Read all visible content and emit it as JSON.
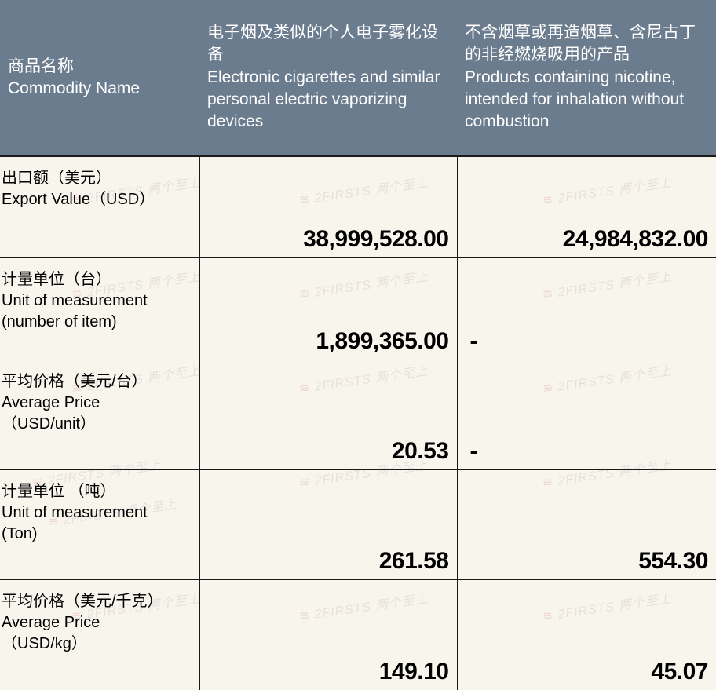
{
  "header": {
    "col1": "商品名称\nCommodity Name",
    "col2": "电子烟及类似的个人电子雾化设备\nElectronic cigarettes and similar personal electric vaporizing devices",
    "col3": "不含烟草或再造烟草、含尼古丁的非经燃烧吸用的产品\nProducts containing nicotine, intended for inhalation without combustion"
  },
  "rows": [
    {
      "label": "出口额（美元）\n Export Value（USD）",
      "v1": "38,999,528.00",
      "v2": "24,984,832.00",
      "v2_align": "right"
    },
    {
      "label": "计量单位（台）\nUnit of measurement\n(number of item)",
      "v1": "1,899,365.00",
      "v2": "-",
      "v2_align": "left"
    },
    {
      "label": "平均价格（美元/台）\nAverage Price\n（USD/unit）",
      "v1": "20.53",
      "v2": "-",
      "v2_align": "left"
    },
    {
      "label": "计量单位 （吨）\nUnit of measurement\n(Ton)",
      "v1": "261.58",
      "v2": "554.30",
      "v2_align": "right"
    },
    {
      "label": "平均价格（美元/千克）\nAverage Price\n（USD/kg）",
      "v1": "149.10",
      "v2": "45.07",
      "v2_align": "right"
    }
  ],
  "watermark_text": "2FIRSTS 两个至上",
  "colors": {
    "header_bg": "#6b7c8e",
    "header_text": "#ffffff",
    "body_bg": "#f8f5ed",
    "border": "#1a1a1a",
    "watermark": "#d4c8c8"
  }
}
